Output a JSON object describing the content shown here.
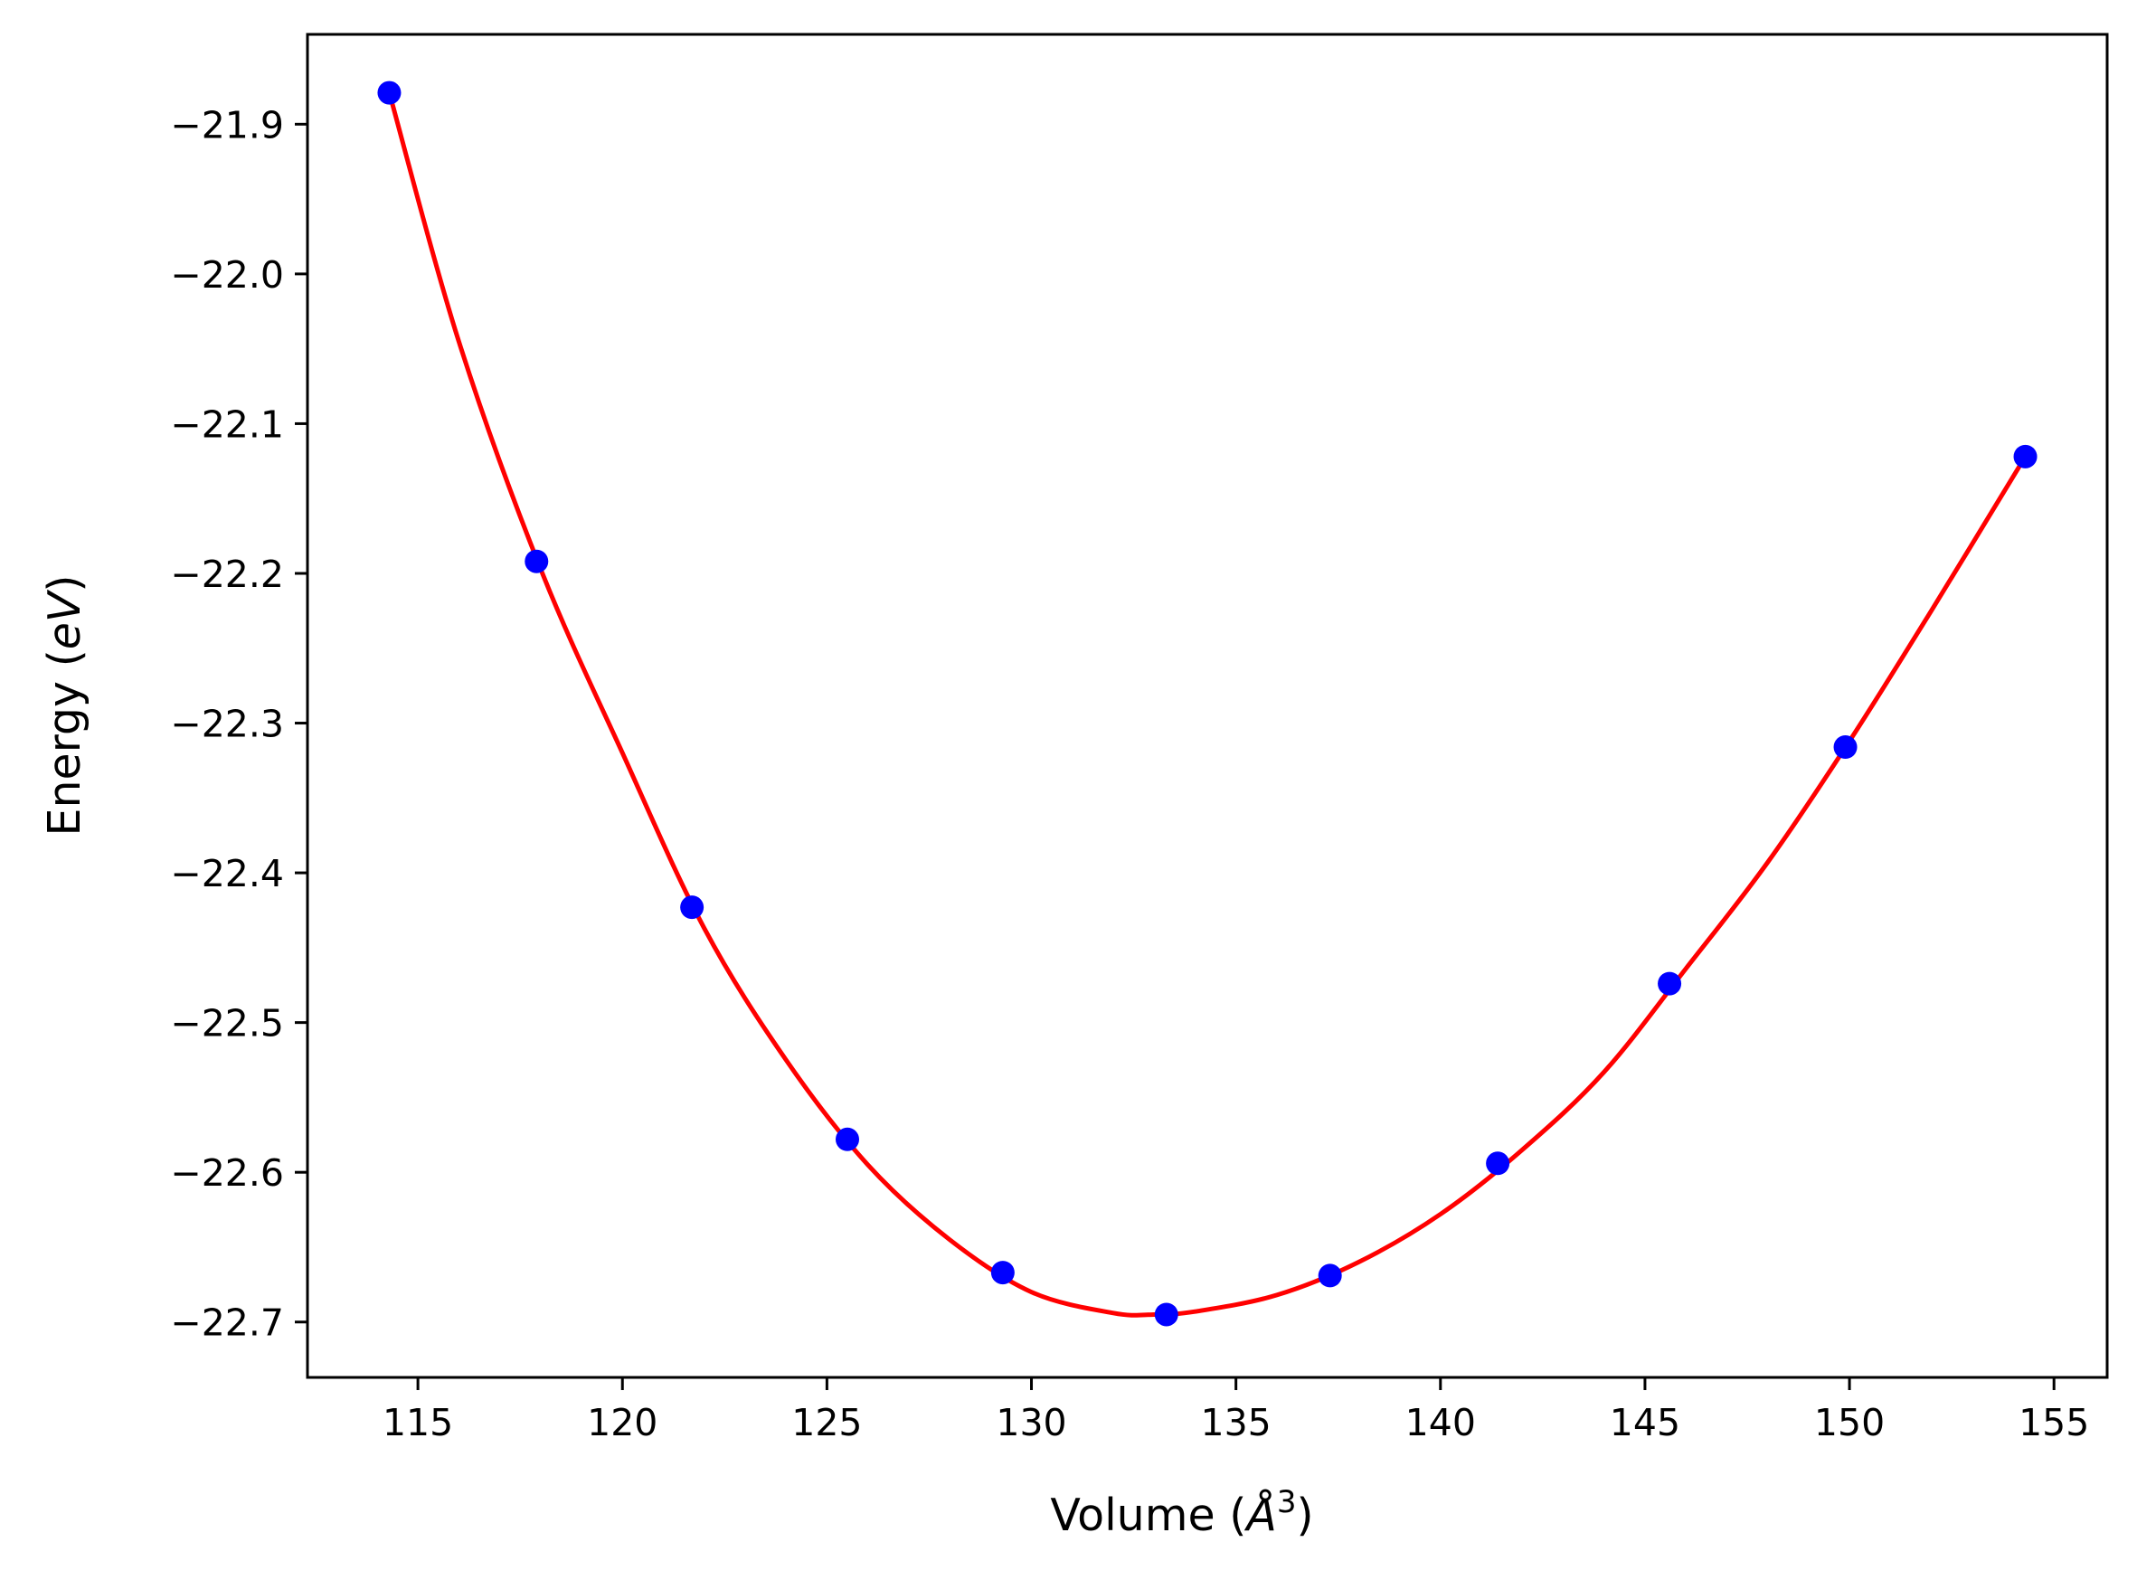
{
  "chart_data": {
    "type": "scatter",
    "xlabel": "Volume (Å³)",
    "xlabel_parts": {
      "prefix": "Volume (",
      "italic": "Å",
      "sup": "3",
      "suffix": ")"
    },
    "ylabel": "Energy (eV)",
    "ylabel_parts": {
      "prefix": "Energy (",
      "italic": "eV",
      "suffix": ")"
    },
    "xlim": [
      112.3,
      156.3
    ],
    "ylim": [
      -22.737,
      -21.84
    ],
    "xticks": [
      115,
      120,
      125,
      130,
      135,
      140,
      145,
      150,
      155
    ],
    "yticks": [
      -21.9,
      -22.0,
      -22.1,
      -22.2,
      -22.3,
      -22.4,
      -22.5,
      -22.6,
      -22.7
    ],
    "xtick_labels": [
      "115",
      "120",
      "125",
      "130",
      "135",
      "140",
      "145",
      "150",
      "155"
    ],
    "ytick_labels": [
      "−21.9",
      "−22.0",
      "−22.1",
      "−22.2",
      "−22.3",
      "−22.4",
      "−22.5",
      "−22.6",
      "−22.7"
    ],
    "grid": false,
    "series": [
      {
        "kind": "markers",
        "color": "#0000ff",
        "x": [
          114.3,
          117.9,
          121.7,
          125.5,
          129.3,
          133.3,
          137.3,
          141.4,
          145.6,
          149.9,
          154.3
        ],
        "y": [
          -21.879,
          -22.192,
          -22.423,
          -22.578,
          -22.667,
          -22.695,
          -22.669,
          -22.594,
          -22.474,
          -22.316,
          -22.122
        ]
      },
      {
        "kind": "fit-line",
        "color": "#ff0000",
        "x": [
          114.3,
          116.0,
          118.0,
          120.0,
          122.0,
          124.0,
          126.0,
          128.0,
          130.0,
          132.0,
          133.0,
          134.0,
          136.0,
          138.0,
          140.0,
          142.0,
          144.0,
          146.0,
          148.0,
          150.0,
          152.0,
          154.3
        ],
        "y": [
          -21.879,
          -22.045,
          -22.197,
          -22.32,
          -22.437,
          -22.525,
          -22.595,
          -22.645,
          -22.68,
          -22.694,
          -22.695,
          -22.693,
          -22.682,
          -22.66,
          -22.628,
          -22.585,
          -22.533,
          -22.464,
          -22.393,
          -22.312,
          -22.225,
          -22.122
        ]
      }
    ]
  }
}
